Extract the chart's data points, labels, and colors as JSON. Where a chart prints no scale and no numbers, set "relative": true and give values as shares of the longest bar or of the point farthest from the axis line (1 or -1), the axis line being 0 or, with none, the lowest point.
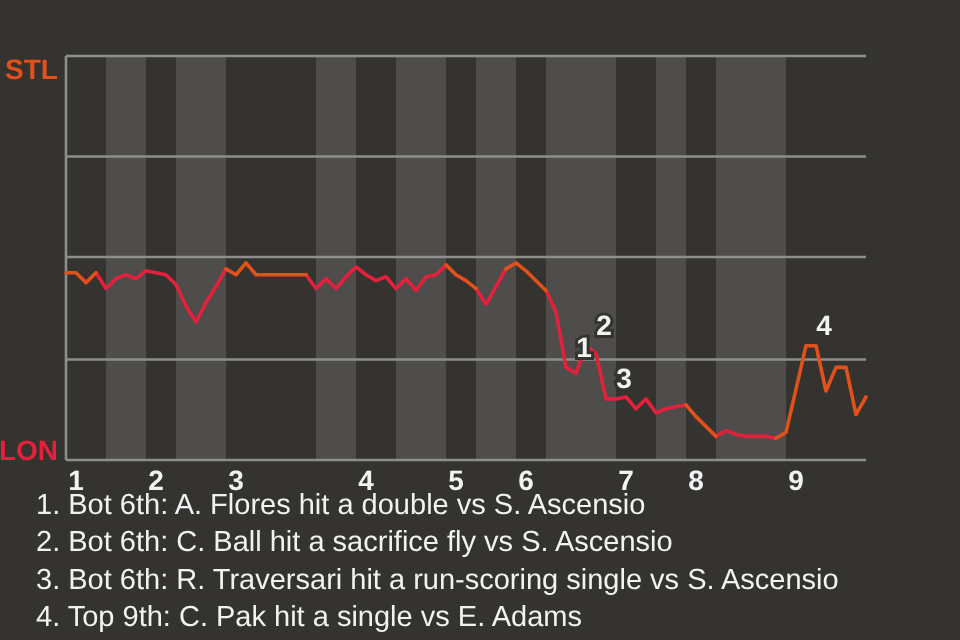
{
  "chart_data": {
    "type": "line",
    "relative": true,
    "categories": [
      null,
      "1",
      null,
      null,
      null,
      null,
      null,
      null,
      null,
      "2",
      null,
      null,
      null,
      null,
      null,
      null,
      null,
      "3",
      null,
      null,
      null,
      null,
      null,
      null,
      null,
      null,
      null,
      null,
      null,
      null,
      "4",
      null,
      null,
      null,
      null,
      null,
      null,
      null,
      null,
      "5",
      null,
      null,
      null,
      null,
      null,
      null,
      "6",
      null,
      null,
      null,
      null,
      null,
      null,
      null,
      null,
      null,
      "7",
      null,
      null,
      null,
      null,
      null,
      null,
      "8",
      null,
      null,
      null,
      null,
      null,
      null,
      null,
      null,
      null,
      "9",
      null,
      null,
      null,
      null,
      null,
      null,
      null
    ],
    "legend": "left",
    "ref_lines": [
      {
        "axis": "y",
        "value": 0.51,
        "color": "#8e8e8c"
      },
      {
        "axis": "y",
        "value": 1.03,
        "color": "#8e8e8c"
      },
      {
        "axis": "y",
        "value": 1.54,
        "color": "#8e8e8c"
      }
    ],
    "series": [
      {
        "name": "STL",
        "color": "#e2501c",
        "values": [
          0.95,
          0.95,
          0.9,
          0.95,
          null,
          null,
          null,
          null,
          null,
          null,
          null,
          null,
          null,
          null,
          null,
          null,
          0.97,
          0.94,
          1,
          0.94,
          0.94,
          0.94,
          0.94,
          0.94,
          0.94,
          null,
          null,
          null,
          null,
          null,
          null,
          null,
          null,
          null,
          null,
          null,
          null,
          null,
          0.99,
          0.94,
          0.91,
          0.87,
          null,
          null,
          0.97,
          1,
          0.96,
          0.91,
          0.86,
          null,
          null,
          null,
          null,
          null,
          null,
          null,
          null,
          null,
          null,
          null,
          null,
          null,
          0.28,
          0.22,
          0.17,
          0.12,
          null,
          null,
          null,
          null,
          null,
          0.11,
          0.14,
          0.36,
          0.58,
          0.58,
          0.35,
          0.47,
          0.47,
          0.23,
          0.32
        ]
      },
      {
        "name": "LON",
        "color": "#e3213c",
        "values": [
          null,
          null,
          null,
          0.95,
          0.87,
          0.92,
          0.94,
          0.92,
          0.96,
          0.95,
          0.94,
          0.89,
          0.78,
          0.7,
          0.8,
          0.88,
          0.97,
          null,
          null,
          null,
          null,
          null,
          null,
          null,
          0.94,
          0.87,
          0.92,
          0.87,
          0.93,
          0.98,
          0.94,
          0.91,
          0.93,
          0.87,
          0.92,
          0.86,
          0.93,
          0.94,
          0.99,
          null,
          null,
          0.87,
          0.79,
          0.88,
          0.97,
          null,
          null,
          null,
          0.86,
          0.75,
          0.47,
          0.44,
          0.58,
          0.54,
          0.31,
          0.31,
          0.32,
          0.26,
          0.31,
          0.24,
          0.26,
          0.27,
          0.28,
          null,
          null,
          0.12,
          0.15,
          0.13,
          0.12,
          0.12,
          0.12,
          0.11,
          null,
          null,
          null,
          null,
          null,
          null,
          null,
          null,
          null
        ]
      }
    ],
    "annotations": [
      {
        "text": "1",
        "y": 0.47
      },
      {
        "text": "2",
        "y": 0.58
      },
      {
        "text": "3",
        "y": 0.31
      },
      {
        "text": "4",
        "y": 0.58
      },
      "1. Bot 6th: A. Flores hit a double vs S. Ascensio",
      "2. Bot 6th: C. Ball hit a sacrifice fly vs S. Ascensio",
      "3. Bot 6th: R. Traversari hit a run-scoring single vs S. Ascensio",
      "4. Top 9th: C. Pak hit a single vs E. Adams"
    ]
  }
}
